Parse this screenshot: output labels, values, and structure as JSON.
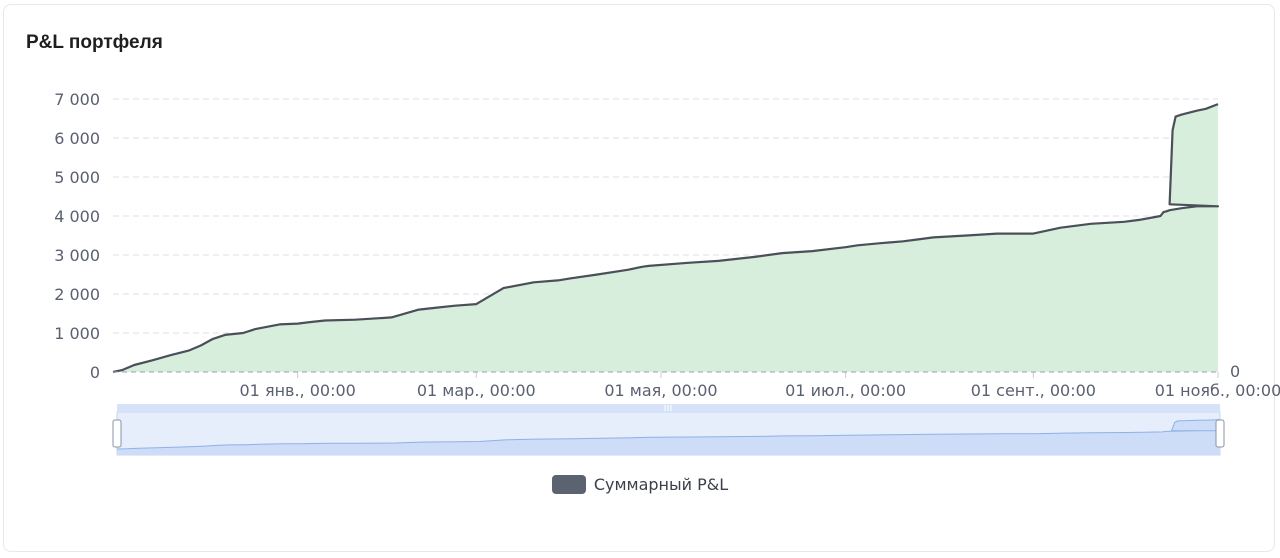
{
  "title": "P&L портфеля",
  "colors": {
    "line": "#4a4f59",
    "area": "#d7eedd",
    "grid": "#dcdfe5",
    "zoom_bg": "#e6edfb",
    "zoom_fill": "#cddcf7",
    "zoom_line": "#8fb1e8",
    "legend_swatch": "#5c6370"
  },
  "chart_data": {
    "type": "area",
    "title": "P&L портфеля",
    "xlabel": "",
    "ylabel": "",
    "ylim": [
      0,
      7000
    ],
    "xlim": [
      "2022-11-01",
      "2023-11-01"
    ],
    "y_ticks": [
      0,
      1000,
      2000,
      3000,
      4000,
      5000,
      6000,
      7000
    ],
    "y_tick_labels": [
      "0",
      "1 000",
      "2 000",
      "3 000",
      "4 000",
      "5 000",
      "6 000",
      "7 000"
    ],
    "x_tick_labels": [
      "01 янв., 00:00",
      "01 мар., 00:00",
      "01 мая, 00:00",
      "01 июл., 00:00",
      "01 сент., 00:00",
      "01 нояб., 00:00"
    ],
    "x_ticks": [
      "2023-01-01",
      "2023-03-01",
      "2023-05-01",
      "2023-07-01",
      "2023-09-01",
      "2023-11-01"
    ],
    "right_axis_label": "0",
    "grid": true,
    "legend_position": "bottom-center",
    "series": [
      {
        "name": "Суммарный P&L",
        "x": [
          "2022-11-01",
          "2022-11-04",
          "2022-11-08",
          "2022-11-14",
          "2022-11-20",
          "2022-11-26",
          "2022-11-30",
          "2022-12-04",
          "2022-12-08",
          "2022-12-14",
          "2022-12-18",
          "2022-12-26",
          "2023-01-01",
          "2023-01-05",
          "2023-01-10",
          "2023-01-20",
          "2023-01-28",
          "2023-02-01",
          "2023-02-10",
          "2023-02-16",
          "2023-02-22",
          "2023-03-01",
          "2023-03-10",
          "2023-03-20",
          "2023-03-28",
          "2023-04-01",
          "2023-04-10",
          "2023-04-20",
          "2023-04-25",
          "2023-04-27",
          "2023-05-10",
          "2023-05-20",
          "2023-06-01",
          "2023-06-10",
          "2023-06-20",
          "2023-07-01",
          "2023-07-05",
          "2023-07-12",
          "2023-07-20",
          "2023-07-25",
          "2023-07-30",
          "2023-08-10",
          "2023-08-20",
          "2023-09-01",
          "2023-09-10",
          "2023-09-20",
          "2023-10-01",
          "2023-10-06",
          "2023-10-13",
          "2023-10-14",
          "2023-10-15",
          "2023-10-16",
          "2023-10-20",
          "2023-10-25",
          "2023-11-01"
        ],
        "values": [
          0,
          50,
          180,
          300,
          430,
          550,
          680,
          850,
          950,
          1000,
          1100,
          1220,
          1240,
          1280,
          1320,
          1340,
          1380,
          1400,
          1600,
          1650,
          1700,
          1740,
          2150,
          2300,
          2350,
          2400,
          2500,
          2620,
          2700,
          2720,
          2800,
          2850,
          2950,
          3050,
          3100,
          3200,
          3250,
          3300,
          3350,
          3400,
          3450,
          3500,
          3550,
          3550,
          3700,
          3800,
          3850,
          3900,
          4000,
          4100,
          4120,
          4150,
          4200,
          4250,
          4250
        ],
        "x_extended": [
          "2023-10-16",
          "2023-10-17",
          "2023-10-18",
          "2023-10-20",
          "2023-10-25",
          "2023-10-28",
          "2023-11-01"
        ],
        "values_extended": [
          4300,
          6200,
          6550,
          6600,
          6700,
          6750,
          6870
        ]
      }
    ]
  },
  "zoom": {
    "handle_icon": "grip-icon"
  },
  "legend": {
    "label": "Суммарный P&L"
  }
}
